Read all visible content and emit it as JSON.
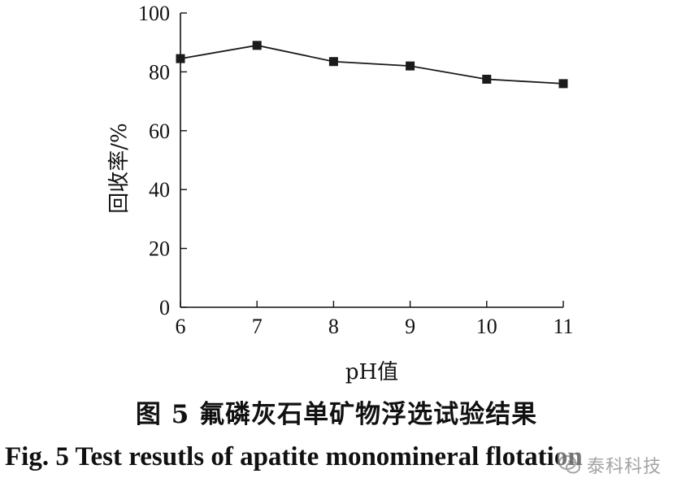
{
  "chart_data": {
    "type": "line",
    "x": [
      6,
      7,
      8,
      9,
      10,
      11
    ],
    "series": [
      {
        "values": [
          84.5,
          89,
          83.5,
          82,
          77.5,
          76
        ]
      }
    ],
    "xlabel": "pH值",
    "ylabel": "回收率/%",
    "xlim": [
      6,
      11
    ],
    "ylim": [
      0,
      100
    ],
    "xticks": [
      "6",
      "7",
      "8",
      "9",
      "10",
      "11"
    ],
    "yticks": [
      "0",
      "20",
      "40",
      "60",
      "80",
      "100"
    ],
    "marker": "square",
    "grid": false,
    "line_color": "#1a1a1a"
  },
  "caption": {
    "cn": "图 5   氟磷灰石单矿物浮选试验结果",
    "en": "Fig. 5   Test resutls of apatite monomineral flotation"
  },
  "watermark": {
    "text": "泰科科技",
    "icon": "wechat-logo-icon"
  }
}
